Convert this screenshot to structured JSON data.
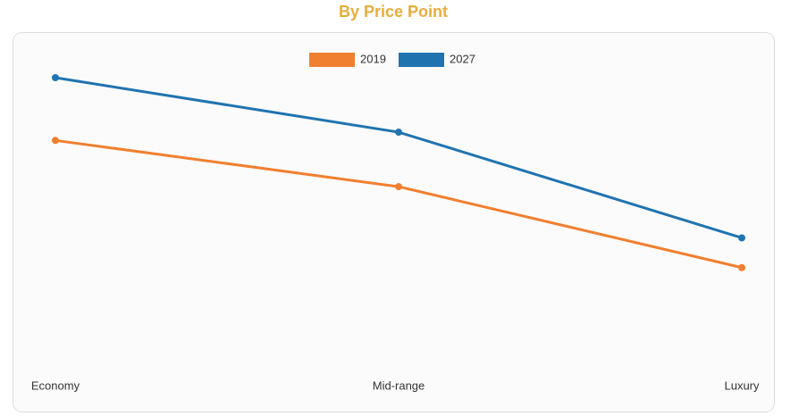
{
  "chart_data": {
    "type": "line",
    "title": "By Price Point",
    "categories": [
      "Economy",
      "Mid-range",
      "Luxury"
    ],
    "series": [
      {
        "name": "2019",
        "color": "#f07f2f",
        "values": [
          71,
          57,
          32.5
        ]
      },
      {
        "name": "2027",
        "color": "#1f74b0",
        "values": [
          90,
          73.5,
          41.5
        ]
      }
    ],
    "ylim": [
      0,
      100
    ],
    "grid": false
  }
}
